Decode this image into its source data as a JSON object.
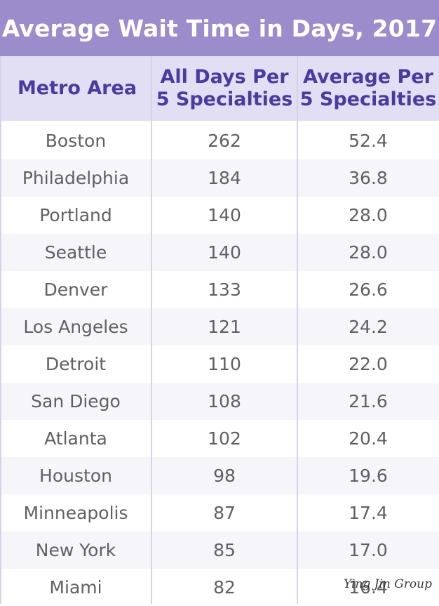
{
  "title": "Average Wait Time in Days, 2017",
  "headers": {
    "metro": "Metro Area",
    "all_days": "All Days Per\n5 Specialties",
    "average": "Average Per\n5 Specialties"
  },
  "rows": [
    {
      "metro": "Boston",
      "all_days": "262",
      "average": "52.4"
    },
    {
      "metro": "Philadelphia",
      "all_days": "184",
      "average": "36.8"
    },
    {
      "metro": "Portland",
      "all_days": "140",
      "average": "28.0"
    },
    {
      "metro": "Seattle",
      "all_days": "140",
      "average": "28.0"
    },
    {
      "metro": "Denver",
      "all_days": "133",
      "average": "26.6"
    },
    {
      "metro": "Los Angeles",
      "all_days": "121",
      "average": "24.2"
    },
    {
      "metro": "Detroit",
      "all_days": "110",
      "average": "22.0"
    },
    {
      "metro": "San Diego",
      "all_days": "108",
      "average": "21.6"
    },
    {
      "metro": "Atlanta",
      "all_days": "102",
      "average": "20.4"
    },
    {
      "metro": "Houston",
      "all_days": "98",
      "average": "19.6"
    },
    {
      "metro": "Minneapolis",
      "all_days": "87",
      "average": "17.4"
    },
    {
      "metro": "New York",
      "all_days": "85",
      "average": "17.0"
    },
    {
      "metro": "Miami",
      "all_days": "82",
      "average": "16.4"
    }
  ],
  "watermark": "Ying Jin Group",
  "colors": {
    "title_bg": "#9b8ccc",
    "header_bg": "#e2def3",
    "header_text": "#4b3aa2",
    "cell_text": "#606060"
  }
}
